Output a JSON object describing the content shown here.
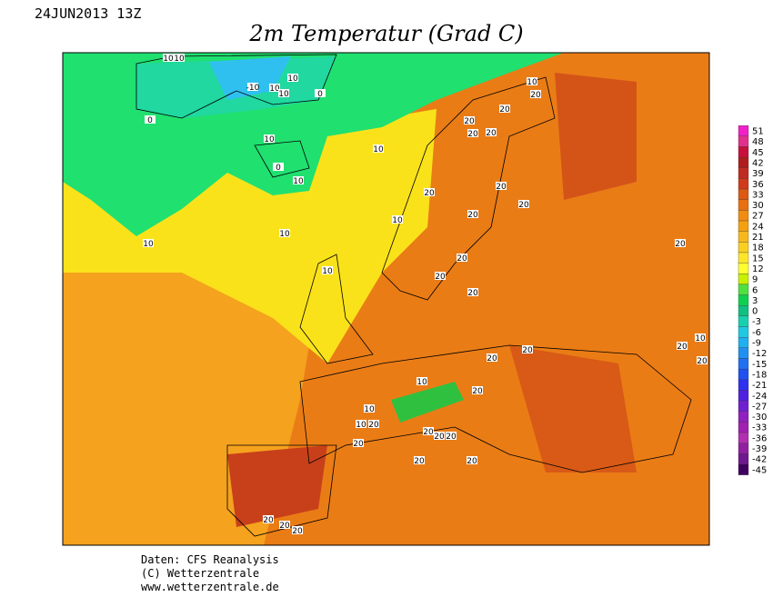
{
  "header": {
    "run": "24JUN2013 13Z",
    "title": "2m Temperatur (Grad C)"
  },
  "scale": {
    "values": [
      51,
      48,
      45,
      42,
      39,
      36,
      33,
      30,
      27,
      24,
      21,
      18,
      15,
      12,
      9,
      6,
      3,
      0,
      -3,
      -6,
      -9,
      -12,
      -15,
      -18,
      -21,
      -24,
      -27,
      -30,
      -33,
      -36,
      -39,
      -42,
      -45
    ],
    "colors": [
      "#f020c8",
      "#e0308a",
      "#c8103c",
      "#b01c1c",
      "#c02a20",
      "#d03a1a",
      "#dc5a14",
      "#e87010",
      "#f08c10",
      "#f5a010",
      "#f8b81c",
      "#fad020",
      "#fce62a",
      "#ffff30",
      "#c8f000",
      "#50e040",
      "#10d050",
      "#10c080",
      "#18d0b0",
      "#20c8e0",
      "#20b0f0",
      "#2090f0",
      "#2070f0",
      "#2050f0",
      "#3030f0",
      "#5020e0",
      "#7020d0",
      "#9020c0",
      "#a020b0",
      "#b030b0",
      "#9020a0",
      "#701890",
      "#400060"
    ]
  },
  "contour_labels": [
    10,
    10,
    -10,
    10,
    10,
    10,
    0,
    0,
    10,
    0,
    10,
    10,
    10,
    10,
    10,
    10,
    20,
    20,
    20,
    20,
    20,
    20,
    20,
    20,
    20,
    10,
    20,
    20,
    20,
    20,
    20,
    10,
    10,
    10,
    20,
    20,
    20,
    20,
    20,
    20,
    20,
    20,
    20,
    20,
    20,
    20,
    10,
    20,
    20
  ],
  "footer": {
    "line1": "Daten: CFS Reanalysis",
    "line2": "(C) Wetterzentrale",
    "line3": "www.wetterzentrale.de"
  }
}
